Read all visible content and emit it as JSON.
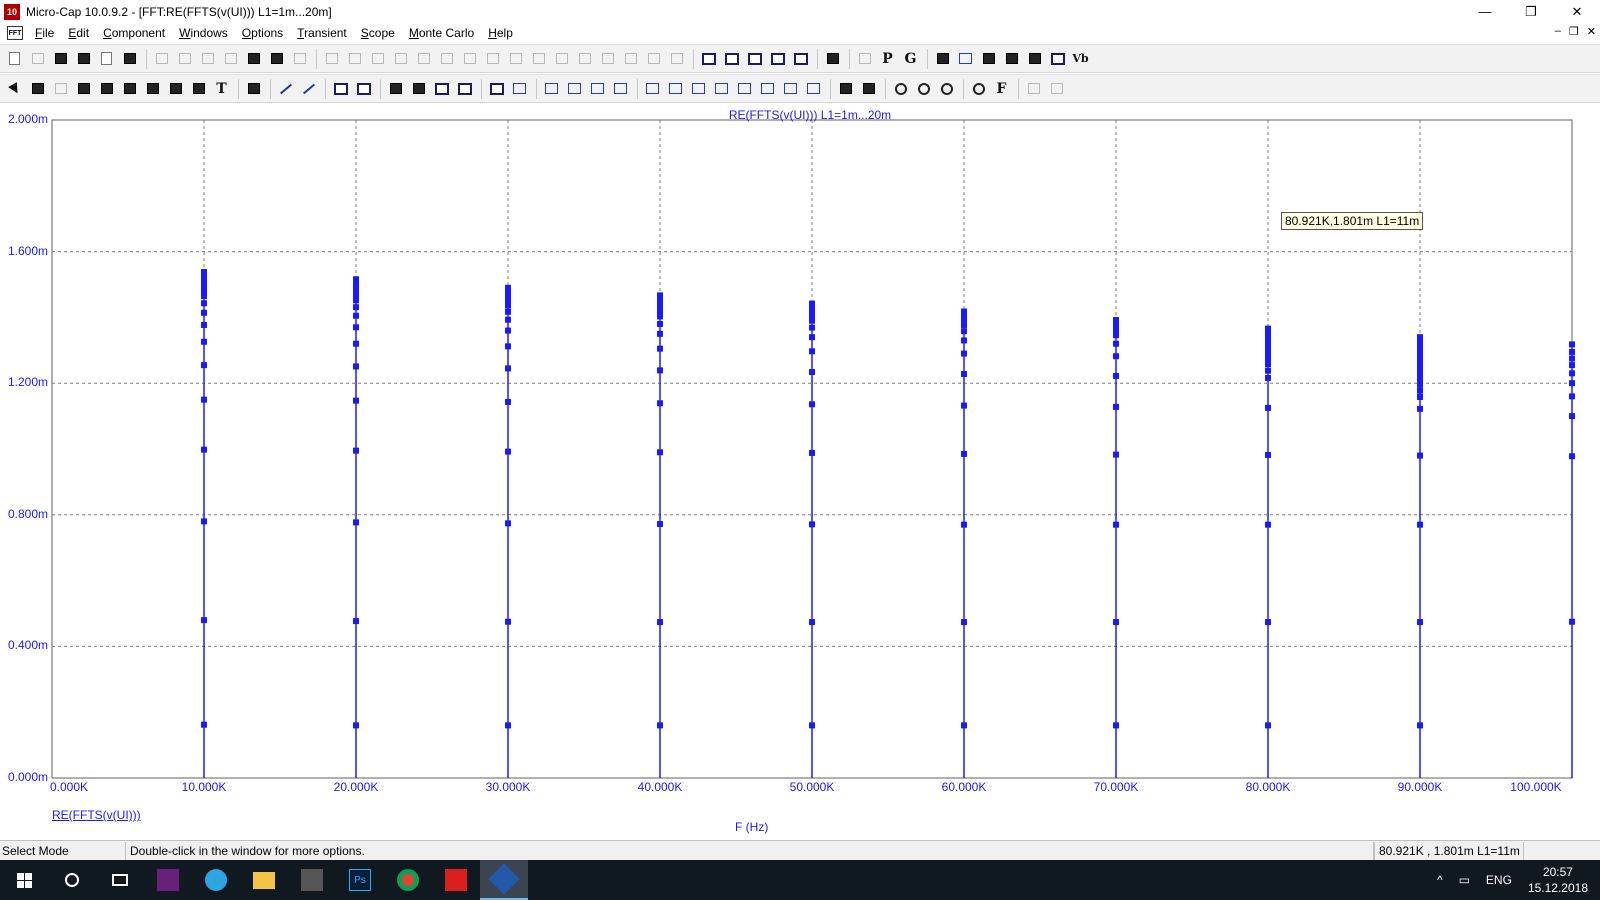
{
  "window": {
    "title": "Micro-Cap 10.0.9.2 - [FFT:RE(FFTS(v(UI))) L1=1m...20m]",
    "app_icon_text": "10",
    "controls": [
      "minimize-icon",
      "restore-icon",
      "close-icon"
    ]
  },
  "menu": {
    "doc_icon_text": "FFT",
    "items": [
      "File",
      "Edit",
      "Component",
      "Windows",
      "Options",
      "Transient",
      "Scope",
      "Monte Carlo",
      "Help"
    ]
  },
  "plot": {
    "title": "RE(FFTS(v(UI))) L1=1m...20m",
    "series_label": "RE(FFTS(v(UI)))",
    "tooltip": "80.921K,1.801m L1=11m"
  },
  "chart_data": {
    "type": "scatter",
    "title": "RE(FFTS(v(UI))) L1=1m...20m",
    "xlabel": "F (Hz)",
    "ylabel": "RE(FFTS(v(UI)))",
    "xlim": [
      0,
      100000
    ],
    "ylim": [
      0,
      0.002
    ],
    "grid": true,
    "x_tick_labels": [
      "0.000K",
      "10.000K",
      "20.000K",
      "30.000K",
      "40.000K",
      "50.000K",
      "60.000K",
      "70.000K",
      "80.000K",
      "90.000K",
      "100.000K"
    ],
    "y_tick_labels": [
      "0.000m",
      "0.400m",
      "0.800m",
      "1.200m",
      "1.600m",
      "2.000m"
    ],
    "marker_color": "#1a1aff",
    "grid_color": "#808080",
    "series": [
      {
        "x": 10000,
        "y_top": 0.001538,
        "values": [
          0.000162,
          0.00048,
          0.00078,
          0.000998,
          0.00115,
          0.001255,
          0.001326,
          0.001377,
          0.001414,
          0.001443,
          0.001465,
          0.001483,
          0.001498,
          0.00151,
          0.00152,
          0.001528,
          0.001534,
          0.001538
        ]
      },
      {
        "x": 20000,
        "y_top": 0.001516,
        "values": [
          0.00016,
          0.000477,
          0.000777,
          0.000995,
          0.001147,
          0.001251,
          0.00132,
          0.00137,
          0.001405,
          0.001431,
          0.001452,
          0.001468,
          0.001481,
          0.001492,
          0.001501,
          0.001508,
          0.001513,
          0.001516
        ]
      },
      {
        "x": 30000,
        "y_top": 0.00149,
        "values": [
          0.00016,
          0.000475,
          0.000774,
          0.000992,
          0.001143,
          0.001245,
          0.001312,
          0.00136,
          0.001393,
          0.001417,
          0.001436,
          0.001451,
          0.001463,
          0.001473,
          0.00148,
          0.001486,
          0.001489,
          0.00149
        ]
      },
      {
        "x": 40000,
        "y_top": 0.001467,
        "values": [
          0.00016,
          0.000474,
          0.000772,
          0.00099,
          0.001139,
          0.001239,
          0.001305,
          0.00135,
          0.00138,
          0.001403,
          0.00142,
          0.001434,
          0.001445,
          0.001454,
          0.00146,
          0.001464,
          0.001466,
          0.001467
        ]
      },
      {
        "x": 50000,
        "y_top": 0.001442,
        "values": [
          0.00016,
          0.000474,
          0.000771,
          0.000988,
          0.001136,
          0.001234,
          0.001297,
          0.00134,
          0.001369,
          0.00139,
          0.001405,
          0.001417,
          0.001427,
          0.001434,
          0.001438,
          0.001441,
          0.001442
        ]
      },
      {
        "x": 60000,
        "y_top": 0.001418,
        "values": [
          0.00016,
          0.000474,
          0.00077,
          0.000985,
          0.001132,
          0.001228,
          0.00129,
          0.00133,
          0.001358,
          0.001377,
          0.001391,
          0.001402,
          0.00141,
          0.001415,
          0.001417,
          0.001418
        ]
      },
      {
        "x": 70000,
        "y_top": 0.001392,
        "values": [
          0.00016,
          0.000474,
          0.00077,
          0.000983,
          0.001128,
          0.001222,
          0.001282,
          0.00132,
          0.001346,
          0.001362,
          0.001374,
          0.001383,
          0.001388,
          0.001391,
          0.001392
        ]
      },
      {
        "x": 80000,
        "y_top": 0.001366,
        "values": [
          0.00016,
          0.000474,
          0.00077,
          0.000982,
          0.001125,
          0.001216,
          0.001238,
          0.001258,
          0.001275,
          0.00129,
          0.001305,
          0.001318,
          0.00133,
          0.001341,
          0.00135,
          0.001357,
          0.001362,
          0.001366
        ]
      },
      {
        "x": 90000,
        "y_top": 0.00134,
        "values": [
          0.00016,
          0.000474,
          0.00077,
          0.00098,
          0.001122,
          0.001158,
          0.001177,
          0.001195,
          0.001212,
          0.001228,
          0.001243,
          0.001258,
          0.001272,
          0.001285,
          0.001297,
          0.001308,
          0.001318,
          0.001327,
          0.001334,
          0.00134
        ]
      },
      {
        "x": 100000,
        "y_top": 0.001318,
        "values": [
          0.000475,
          0.000978,
          0.0011,
          0.00116,
          0.0012,
          0.00123,
          0.001255,
          0.001275,
          0.001295,
          0.001318
        ]
      }
    ]
  },
  "status": {
    "mode": "Select Mode",
    "hint": "Double-click in the window for more options.",
    "coords": "80.921K , 1.801m L1=11m"
  },
  "taskbar": {
    "apps": [
      "windows-start-icon",
      "search-icon",
      "task-view-icon",
      "visual-studio-icon",
      "telegram-icon",
      "file-explorer-icon",
      "ltspice-icon",
      "photoshop-icon",
      "chrome-icon",
      "acrobat-icon",
      "microcap-icon"
    ],
    "language": "ENG",
    "time": "20:57",
    "date": "15.12.2018"
  }
}
